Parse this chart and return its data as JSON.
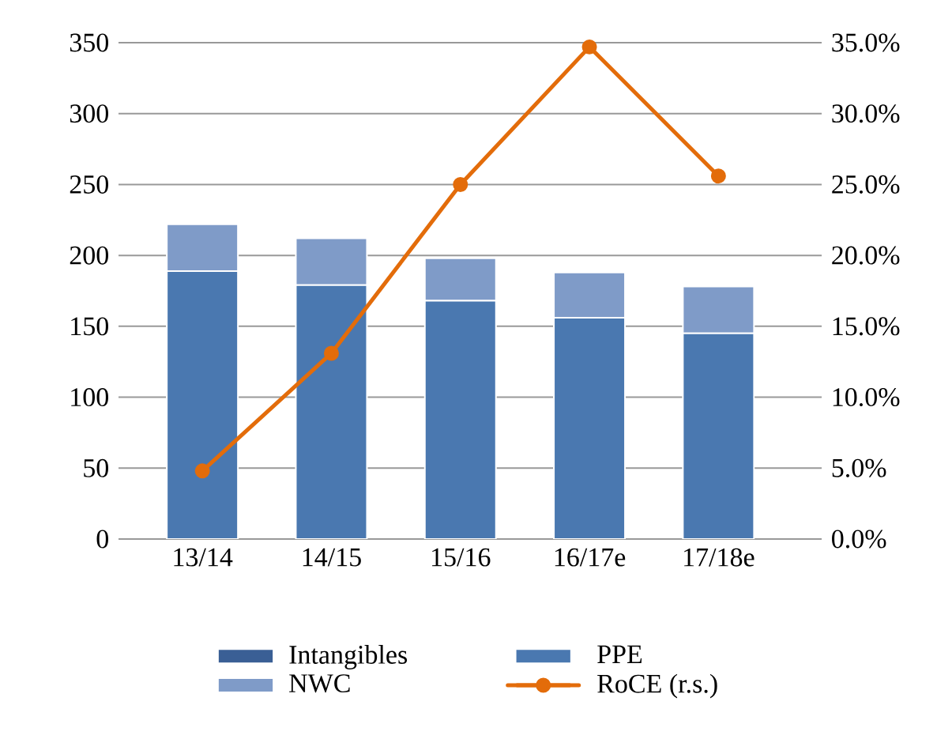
{
  "chart_data": {
    "type": "bar",
    "stacked": true,
    "categories": [
      "13/14",
      "14/15",
      "15/16",
      "16/17e",
      "17/18e"
    ],
    "series": [
      {
        "name": "Intangibles",
        "color": "#3a5f95",
        "values": [
          0,
          0,
          0,
          0,
          0
        ]
      },
      {
        "name": "PPE",
        "color": "#4a78b0",
        "values": [
          189,
          179,
          168,
          156,
          145
        ]
      },
      {
        "name": "NWC",
        "color": "#7f9bc8",
        "values": [
          33,
          33,
          30,
          32,
          33
        ]
      },
      {
        "name": "RoCE (r.s.)",
        "type": "line",
        "axis": "y2",
        "color": "#e36c0a",
        "marker": "circle",
        "values": [
          4.8,
          13.1,
          25.0,
          34.7,
          25.6
        ]
      }
    ],
    "ylim": [
      0,
      350
    ],
    "yticks": [
      0,
      50,
      100,
      150,
      200,
      250,
      300,
      350
    ],
    "y2lim": [
      0,
      35
    ],
    "y2ticks": [
      {
        "value": 0,
        "label": "0.0%"
      },
      {
        "value": 5,
        "label": "5.0%"
      },
      {
        "value": 10,
        "label": "10.0%"
      },
      {
        "value": 15,
        "label": "15.0%"
      },
      {
        "value": 20,
        "label": "20.0%"
      },
      {
        "value": 25,
        "label": "25.0%"
      },
      {
        "value": 30,
        "label": "30.0%"
      },
      {
        "value": 35,
        "label": "35.0%"
      }
    ],
    "grid": "y",
    "legend": "bottom"
  }
}
